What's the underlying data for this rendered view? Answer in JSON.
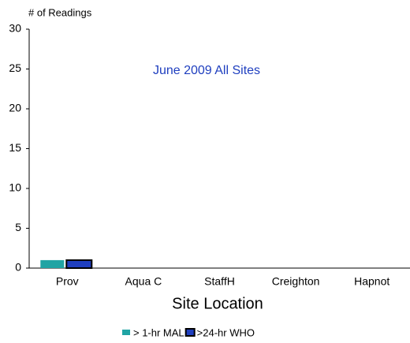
{
  "chart_data": {
    "type": "bar",
    "title": "June 2009 All Sites",
    "y_label": "# of Readings",
    "x_label": "Site Location",
    "categories": [
      "Prov",
      "Aqua C",
      "StaffH",
      "Creighton",
      "Hapnot"
    ],
    "series": [
      {
        "name": "> 1-hr MAL",
        "color": "#20a4a4",
        "values": [
          1,
          0,
          0,
          0,
          0
        ]
      },
      {
        "name": ">24-hr WHO",
        "color": "#1f3fbf",
        "edgecolor": "#000000",
        "values": [
          1,
          0,
          0,
          0,
          0
        ]
      }
    ],
    "ylim": [
      0,
      30
    ],
    "yticks": [
      0,
      5,
      10,
      15,
      20,
      25,
      30
    ],
    "grid": false
  }
}
